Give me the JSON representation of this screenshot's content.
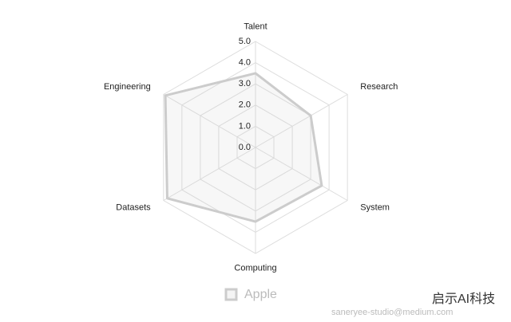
{
  "chart_data": {
    "type": "radar",
    "categories": [
      "Talent",
      "Research",
      "System",
      "Computing",
      "Datasets",
      "Engineering"
    ],
    "series": [
      {
        "name": "Apple",
        "color": "#cccccc",
        "values": [
          3.5,
          3.0,
          3.6,
          3.5,
          4.8,
          4.9
        ]
      }
    ],
    "rlim": [
      0,
      5
    ],
    "rticks": [
      {
        "value": 0,
        "label": "0.0"
      },
      {
        "value": 1,
        "label": "1.0"
      },
      {
        "value": 2,
        "label": "2.0"
      },
      {
        "value": 3,
        "label": "3.0"
      },
      {
        "value": 4,
        "label": "4.0"
      },
      {
        "value": 5,
        "label": "5.0"
      }
    ],
    "grid": true,
    "legend": "bottom",
    "watermarks": [
      "saneryee-studio@medium.com",
      "启示AI科技"
    ]
  }
}
